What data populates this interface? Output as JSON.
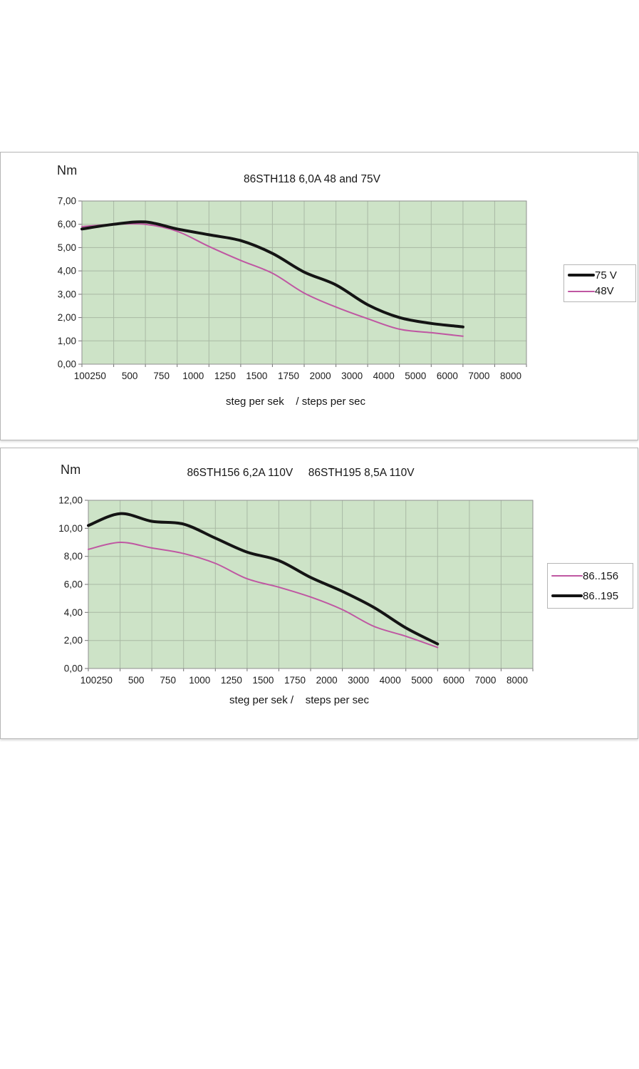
{
  "page": {
    "background": "#ffffff"
  },
  "colors": {
    "plot_bg": "#cde3c7",
    "grid": "#a9b9a4",
    "plot_border": "#8f8f8f",
    "tick": "#6e6e6e",
    "panel_border": "#b6b6b6",
    "series_black": "#141414",
    "series_pink": "#bf57a2"
  },
  "chart_data": [
    {
      "type": "line",
      "title": "86STH118 6,0A 48 and 75V",
      "y_unit_label": "Nm",
      "xlabel": "steg per sek    / steps per sec",
      "categories": [
        "100",
        "250",
        "500",
        "750",
        "1000",
        "1250",
        "1500",
        "1750",
        "2000",
        "3000",
        "4000",
        "5000",
        "6000",
        "7000",
        "8000"
      ],
      "ylim": [
        0,
        7
      ],
      "y_step": 1,
      "y_tick_labels": [
        "7,00",
        "6,00",
        "5,00",
        "4,00",
        "3,00",
        "2,00",
        "1,00",
        "0,00"
      ],
      "grid": true,
      "legend_position": "right",
      "series": [
        {
          "name": "75 V",
          "color": "#141414",
          "width": 4,
          "values": [
            5.8,
            6.0,
            6.1,
            5.8,
            5.55,
            5.3,
            4.75,
            3.95,
            3.4,
            2.55,
            2.0,
            1.75,
            1.6
          ]
        },
        {
          "name": "48V",
          "color": "#bf57a2",
          "width": 2,
          "values": [
            5.9,
            6.0,
            6.0,
            5.7,
            5.05,
            4.45,
            3.9,
            3.05,
            2.45,
            1.95,
            1.5,
            1.35,
            1.2
          ]
        }
      ]
    },
    {
      "type": "line",
      "title": "86STH156 6,2A 110V     86STH195 8,5A 110V",
      "y_unit_label": "Nm",
      "xlabel": "steg per sek /    steps per sec",
      "categories": [
        "100",
        "250",
        "500",
        "750",
        "1000",
        "1250",
        "1500",
        "1750",
        "2000",
        "3000",
        "4000",
        "5000",
        "6000",
        "7000",
        "8000"
      ],
      "ylim": [
        0,
        12
      ],
      "y_step": 2,
      "y_tick_labels": [
        "12,00",
        "10,00",
        "8,00",
        "6,00",
        "4,00",
        "2,00",
        "0,00"
      ],
      "grid": true,
      "legend_position": "right",
      "series": [
        {
          "name": "86..156",
          "color": "#bf57a2",
          "width": 2,
          "values": [
            8.5,
            9.0,
            8.6,
            8.2,
            7.5,
            6.4,
            5.8,
            5.1,
            4.2,
            3.0,
            2.3,
            1.5
          ]
        },
        {
          "name": "86..195",
          "color": "#141414",
          "width": 4,
          "values": [
            10.2,
            11.05,
            10.5,
            10.3,
            9.3,
            8.3,
            7.7,
            6.5,
            5.5,
            4.35,
            2.9,
            1.75
          ]
        }
      ]
    }
  ]
}
